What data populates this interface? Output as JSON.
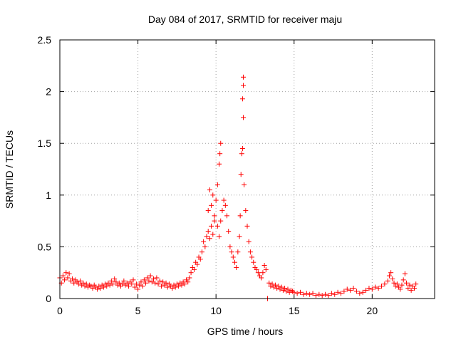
{
  "chart_data": {
    "type": "scatter",
    "title": "Day 084 of 2017, SRMTID for receiver maju",
    "xlabel": "GPS time / hours",
    "ylabel": "SRMTID / TECUs",
    "xlim": [
      0,
      24
    ],
    "ylim": [
      0,
      2.5
    ],
    "xticks": [
      0,
      5,
      10,
      15,
      20
    ],
    "xtick_labels": [
      "0",
      "5",
      "10",
      "15",
      "20"
    ],
    "yticks": [
      0,
      0.5,
      1,
      1.5,
      2,
      2.5
    ],
    "ytick_labels": [
      "0",
      "0.5",
      "1",
      "1.5",
      "2",
      "2.5"
    ],
    "grid": true,
    "marker": "+",
    "series": [
      {
        "name": "SRMTID",
        "color": "#ff0000",
        "points": [
          [
            0.0,
            0.2
          ],
          [
            0.1,
            0.15
          ],
          [
            0.2,
            0.22
          ],
          [
            0.3,
            0.18
          ],
          [
            0.4,
            0.25
          ],
          [
            0.5,
            0.2
          ],
          [
            0.6,
            0.24
          ],
          [
            0.7,
            0.17
          ],
          [
            0.8,
            0.19
          ],
          [
            0.9,
            0.15
          ],
          [
            1.0,
            0.18
          ],
          [
            1.1,
            0.16
          ],
          [
            1.2,
            0.14
          ],
          [
            1.3,
            0.17
          ],
          [
            1.4,
            0.13
          ],
          [
            1.5,
            0.15
          ],
          [
            1.6,
            0.12
          ],
          [
            1.7,
            0.14
          ],
          [
            1.8,
            0.11
          ],
          [
            1.9,
            0.13
          ],
          [
            2.0,
            0.12
          ],
          [
            2.1,
            0.1
          ],
          [
            2.2,
            0.13
          ],
          [
            2.3,
            0.11
          ],
          [
            2.4,
            0.09
          ],
          [
            2.5,
            0.12
          ],
          [
            2.6,
            0.1
          ],
          [
            2.7,
            0.13
          ],
          [
            2.8,
            0.11
          ],
          [
            2.9,
            0.14
          ],
          [
            3.0,
            0.12
          ],
          [
            3.1,
            0.15
          ],
          [
            3.2,
            0.13
          ],
          [
            3.3,
            0.17
          ],
          [
            3.4,
            0.14
          ],
          [
            3.5,
            0.19
          ],
          [
            3.6,
            0.16
          ],
          [
            3.7,
            0.13
          ],
          [
            3.8,
            0.15
          ],
          [
            3.9,
            0.12
          ],
          [
            4.0,
            0.14
          ],
          [
            4.1,
            0.17
          ],
          [
            4.2,
            0.13
          ],
          [
            4.3,
            0.15
          ],
          [
            4.4,
            0.12
          ],
          [
            4.5,
            0.16
          ],
          [
            4.6,
            0.14
          ],
          [
            4.7,
            0.18
          ],
          [
            4.8,
            0.11
          ],
          [
            4.9,
            0.14
          ],
          [
            5.0,
            0.09
          ],
          [
            5.1,
            0.13
          ],
          [
            5.2,
            0.16
          ],
          [
            5.3,
            0.12
          ],
          [
            5.4,
            0.18
          ],
          [
            5.5,
            0.15
          ],
          [
            5.6,
            0.2
          ],
          [
            5.7,
            0.17
          ],
          [
            5.8,
            0.22
          ],
          [
            5.9,
            0.16
          ],
          [
            6.0,
            0.19
          ],
          [
            6.1,
            0.15
          ],
          [
            6.2,
            0.2
          ],
          [
            6.3,
            0.14
          ],
          [
            6.4,
            0.17
          ],
          [
            6.5,
            0.12
          ],
          [
            6.6,
            0.16
          ],
          [
            6.7,
            0.13
          ],
          [
            6.8,
            0.15
          ],
          [
            6.9,
            0.11
          ],
          [
            7.0,
            0.14
          ],
          [
            7.1,
            0.12
          ],
          [
            7.2,
            0.1
          ],
          [
            7.3,
            0.13
          ],
          [
            7.4,
            0.11
          ],
          [
            7.5,
            0.14
          ],
          [
            7.6,
            0.12
          ],
          [
            7.7,
            0.15
          ],
          [
            7.8,
            0.13
          ],
          [
            7.9,
            0.16
          ],
          [
            8.0,
            0.14
          ],
          [
            8.1,
            0.18
          ],
          [
            8.2,
            0.16
          ],
          [
            8.3,
            0.2
          ],
          [
            8.4,
            0.25
          ],
          [
            8.5,
            0.3
          ],
          [
            8.6,
            0.28
          ],
          [
            8.7,
            0.35
          ],
          [
            8.8,
            0.33
          ],
          [
            8.9,
            0.4
          ],
          [
            9.0,
            0.38
          ],
          [
            9.1,
            0.45
          ],
          [
            9.2,
            0.55
          ],
          [
            9.3,
            0.5
          ],
          [
            9.4,
            0.6
          ],
          [
            9.5,
            0.65
          ],
          [
            9.6,
            0.58
          ],
          [
            9.7,
            0.7
          ],
          [
            9.8,
            0.62
          ],
          [
            9.9,
            0.75
          ],
          [
            9.5,
            0.85
          ],
          [
            9.6,
            1.05
          ],
          [
            9.7,
            0.9
          ],
          [
            9.8,
            1.0
          ],
          [
            9.9,
            0.8
          ],
          [
            10.0,
            0.95
          ],
          [
            10.1,
            1.1
          ],
          [
            10.2,
            1.3
          ],
          [
            10.25,
            1.4
          ],
          [
            10.3,
            1.5
          ],
          [
            10.1,
            0.7
          ],
          [
            10.2,
            0.6
          ],
          [
            10.3,
            0.75
          ],
          [
            10.4,
            0.85
          ],
          [
            10.5,
            0.95
          ],
          [
            10.6,
            0.9
          ],
          [
            10.7,
            0.8
          ],
          [
            10.8,
            0.65
          ],
          [
            10.9,
            0.5
          ],
          [
            11.0,
            0.45
          ],
          [
            11.1,
            0.4
          ],
          [
            11.2,
            0.35
          ],
          [
            11.3,
            0.3
          ],
          [
            11.4,
            0.45
          ],
          [
            11.5,
            0.6
          ],
          [
            11.55,
            0.8
          ],
          [
            11.6,
            1.2
          ],
          [
            11.65,
            1.4
          ],
          [
            11.7,
            1.45
          ],
          [
            11.75,
            1.75
          ],
          [
            11.7,
            1.93
          ],
          [
            11.75,
            2.06
          ],
          [
            11.75,
            2.14
          ],
          [
            11.8,
            1.1
          ],
          [
            11.9,
            0.85
          ],
          [
            12.0,
            0.7
          ],
          [
            12.1,
            0.55
          ],
          [
            12.2,
            0.45
          ],
          [
            12.3,
            0.4
          ],
          [
            12.4,
            0.35
          ],
          [
            12.5,
            0.3
          ],
          [
            12.6,
            0.28
          ],
          [
            12.7,
            0.25
          ],
          [
            12.8,
            0.22
          ],
          [
            12.9,
            0.2
          ],
          [
            13.0,
            0.25
          ],
          [
            13.1,
            0.32
          ],
          [
            13.2,
            0.28
          ],
          [
            13.3,
            0.0
          ],
          [
            13.4,
            0.15
          ],
          [
            13.5,
            0.12
          ],
          [
            13.6,
            0.14
          ],
          [
            13.7,
            0.11
          ],
          [
            13.8,
            0.13
          ],
          [
            13.9,
            0.1
          ],
          [
            14.0,
            0.12
          ],
          [
            14.1,
            0.09
          ],
          [
            14.2,
            0.11
          ],
          [
            14.3,
            0.08
          ],
          [
            14.4,
            0.1
          ],
          [
            14.5,
            0.07
          ],
          [
            14.6,
            0.09
          ],
          [
            14.7,
            0.06
          ],
          [
            14.8,
            0.08
          ],
          [
            14.9,
            0.07
          ],
          [
            15.0,
            0.06
          ],
          [
            15.2,
            0.05
          ],
          [
            15.4,
            0.06
          ],
          [
            15.6,
            0.04
          ],
          [
            15.8,
            0.05
          ],
          [
            16.0,
            0.04
          ],
          [
            16.2,
            0.05
          ],
          [
            16.4,
            0.03
          ],
          [
            16.6,
            0.04
          ],
          [
            16.8,
            0.03
          ],
          [
            17.0,
            0.04
          ],
          [
            17.2,
            0.03
          ],
          [
            17.4,
            0.05
          ],
          [
            17.6,
            0.04
          ],
          [
            17.8,
            0.06
          ],
          [
            18.0,
            0.05
          ],
          [
            18.2,
            0.07
          ],
          [
            18.4,
            0.09
          ],
          [
            18.6,
            0.08
          ],
          [
            18.8,
            0.1
          ],
          [
            19.0,
            0.07
          ],
          [
            19.2,
            0.05
          ],
          [
            19.4,
            0.06
          ],
          [
            19.6,
            0.08
          ],
          [
            19.8,
            0.1
          ],
          [
            20.0,
            0.09
          ],
          [
            20.2,
            0.11
          ],
          [
            20.4,
            0.1
          ],
          [
            20.6,
            0.12
          ],
          [
            20.8,
            0.14
          ],
          [
            21.0,
            0.17
          ],
          [
            21.1,
            0.22
          ],
          [
            21.2,
            0.25
          ],
          [
            21.3,
            0.19
          ],
          [
            21.4,
            0.15
          ],
          [
            21.5,
            0.12
          ],
          [
            21.6,
            0.14
          ],
          [
            21.7,
            0.11
          ],
          [
            21.8,
            0.09
          ],
          [
            21.9,
            0.13
          ],
          [
            22.0,
            0.18
          ],
          [
            22.1,
            0.24
          ],
          [
            22.2,
            0.15
          ],
          [
            22.3,
            0.1
          ],
          [
            22.4,
            0.13
          ],
          [
            22.5,
            0.08
          ],
          [
            22.6,
            0.12
          ],
          [
            22.7,
            0.1
          ],
          [
            22.8,
            0.14
          ]
        ]
      }
    ]
  }
}
